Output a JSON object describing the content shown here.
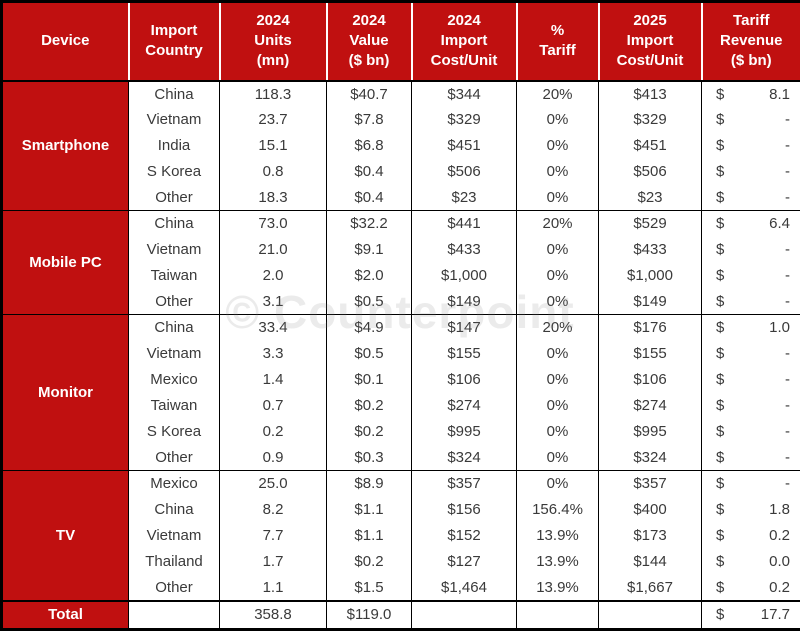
{
  "colors": {
    "header_red": "#c01010",
    "body_text": "#3a3a3a",
    "border": "#000000"
  },
  "chart_data": {
    "type": "table",
    "watermark": "© Counterpoint",
    "layout": {
      "grid": "bordered",
      "header_position": "top",
      "device_cells_merged": true
    },
    "columns": [
      {
        "id": "device",
        "label": "Device"
      },
      {
        "id": "import-country",
        "label": "Import\nCountry"
      },
      {
        "id": "units-2024",
        "label": "2024\nUnits\n(mn)"
      },
      {
        "id": "value-2024",
        "label": "2024\nValue\n($ bn)"
      },
      {
        "id": "import-cost-2024",
        "label": "2024\nImport\nCost/Unit"
      },
      {
        "id": "tariff-pct",
        "label": "%\nTariff"
      },
      {
        "id": "import-cost-2025",
        "label": "2025\nImport\nCost/Unit"
      },
      {
        "id": "tariff-revenue",
        "label": "Tariff\nRevenue\n($ bn)"
      }
    ],
    "sections": [
      {
        "id": "smartphone",
        "device": "Smartphone",
        "rows": [
          {
            "country": "China",
            "units_mn": "118.3",
            "value_bn": "$40.7",
            "import_cost_2024": "$344",
            "tariff_pct": "20%",
            "import_cost_2025": "$413",
            "revenue_symbol": "$",
            "revenue_bn": "8.1"
          },
          {
            "country": "Vietnam",
            "units_mn": "23.7",
            "value_bn": "$7.8",
            "import_cost_2024": "$329",
            "tariff_pct": "0%",
            "import_cost_2025": "$329",
            "revenue_symbol": "$",
            "revenue_bn": "-"
          },
          {
            "country": "India",
            "units_mn": "15.1",
            "value_bn": "$6.8",
            "import_cost_2024": "$451",
            "tariff_pct": "0%",
            "import_cost_2025": "$451",
            "revenue_symbol": "$",
            "revenue_bn": "-"
          },
          {
            "country": "S Korea",
            "units_mn": "0.8",
            "value_bn": "$0.4",
            "import_cost_2024": "$506",
            "tariff_pct": "0%",
            "import_cost_2025": "$506",
            "revenue_symbol": "$",
            "revenue_bn": "-"
          },
          {
            "country": "Other",
            "units_mn": "18.3",
            "value_bn": "$0.4",
            "import_cost_2024": "$23",
            "tariff_pct": "0%",
            "import_cost_2025": "$23",
            "revenue_symbol": "$",
            "revenue_bn": "-"
          }
        ]
      },
      {
        "id": "mobile-pc",
        "device": "Mobile PC",
        "rows": [
          {
            "country": "China",
            "units_mn": "73.0",
            "value_bn": "$32.2",
            "import_cost_2024": "$441",
            "tariff_pct": "20%",
            "import_cost_2025": "$529",
            "revenue_symbol": "$",
            "revenue_bn": "6.4"
          },
          {
            "country": "Vietnam",
            "units_mn": "21.0",
            "value_bn": "$9.1",
            "import_cost_2024": "$433",
            "tariff_pct": "0%",
            "import_cost_2025": "$433",
            "revenue_symbol": "$",
            "revenue_bn": "-"
          },
          {
            "country": "Taiwan",
            "units_mn": "2.0",
            "value_bn": "$2.0",
            "import_cost_2024": "$1,000",
            "tariff_pct": "0%",
            "import_cost_2025": "$1,000",
            "revenue_symbol": "$",
            "revenue_bn": "-"
          },
          {
            "country": "Other",
            "units_mn": "3.1",
            "value_bn": "$0.5",
            "import_cost_2024": "$149",
            "tariff_pct": "0%",
            "import_cost_2025": "$149",
            "revenue_symbol": "$",
            "revenue_bn": "-"
          }
        ]
      },
      {
        "id": "monitor",
        "device": "Monitor",
        "rows": [
          {
            "country": "China",
            "units_mn": "33.4",
            "value_bn": "$4.9",
            "import_cost_2024": "$147",
            "tariff_pct": "20%",
            "import_cost_2025": "$176",
            "revenue_symbol": "$",
            "revenue_bn": "1.0"
          },
          {
            "country": "Vietnam",
            "units_mn": "3.3",
            "value_bn": "$0.5",
            "import_cost_2024": "$155",
            "tariff_pct": "0%",
            "import_cost_2025": "$155",
            "revenue_symbol": "$",
            "revenue_bn": "-"
          },
          {
            "country": "Mexico",
            "units_mn": "1.4",
            "value_bn": "$0.1",
            "import_cost_2024": "$106",
            "tariff_pct": "0%",
            "import_cost_2025": "$106",
            "revenue_symbol": "$",
            "revenue_bn": "-"
          },
          {
            "country": "Taiwan",
            "units_mn": "0.7",
            "value_bn": "$0.2",
            "import_cost_2024": "$274",
            "tariff_pct": "0%",
            "import_cost_2025": "$274",
            "revenue_symbol": "$",
            "revenue_bn": "-"
          },
          {
            "country": "S Korea",
            "units_mn": "0.2",
            "value_bn": "$0.2",
            "import_cost_2024": "$995",
            "tariff_pct": "0%",
            "import_cost_2025": "$995",
            "revenue_symbol": "$",
            "revenue_bn": "-"
          },
          {
            "country": "Other",
            "units_mn": "0.9",
            "value_bn": "$0.3",
            "import_cost_2024": "$324",
            "tariff_pct": "0%",
            "import_cost_2025": "$324",
            "revenue_symbol": "$",
            "revenue_bn": "-"
          }
        ]
      },
      {
        "id": "tv",
        "device": "TV",
        "rows": [
          {
            "country": "Mexico",
            "units_mn": "25.0",
            "value_bn": "$8.9",
            "import_cost_2024": "$357",
            "tariff_pct": "0%",
            "import_cost_2025": "$357",
            "revenue_symbol": "$",
            "revenue_bn": "-"
          },
          {
            "country": "China",
            "units_mn": "8.2",
            "value_bn": "$1.1",
            "import_cost_2024": "$156",
            "tariff_pct": "156.4%",
            "import_cost_2025": "$400",
            "revenue_symbol": "$",
            "revenue_bn": "1.8"
          },
          {
            "country": "Vietnam",
            "units_mn": "7.7",
            "value_bn": "$1.1",
            "import_cost_2024": "$152",
            "tariff_pct": "13.9%",
            "import_cost_2025": "$173",
            "revenue_symbol": "$",
            "revenue_bn": "0.2"
          },
          {
            "country": "Thailand",
            "units_mn": "1.7",
            "value_bn": "$0.2",
            "import_cost_2024": "$127",
            "tariff_pct": "13.9%",
            "import_cost_2025": "$144",
            "revenue_symbol": "$",
            "revenue_bn": "0.0"
          },
          {
            "country": "Other",
            "units_mn": "1.1",
            "value_bn": "$1.5",
            "import_cost_2024": "$1,464",
            "tariff_pct": "13.9%",
            "import_cost_2025": "$1,667",
            "revenue_symbol": "$",
            "revenue_bn": "0.2"
          }
        ]
      }
    ],
    "total_row": {
      "label": "Total",
      "country": "",
      "units_mn": "358.8",
      "value_bn": "$119.0",
      "import_cost_2024": "",
      "tariff_pct": "",
      "import_cost_2025": "",
      "revenue_symbol": "$",
      "revenue_bn": "17.7"
    }
  }
}
